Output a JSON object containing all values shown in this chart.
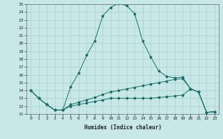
{
  "xlabel": "Humidex (Indice chaleur)",
  "xlim": [
    -0.5,
    23.5
  ],
  "ylim": [
    11,
    25
  ],
  "yticks": [
    11,
    12,
    13,
    14,
    15,
    16,
    17,
    18,
    19,
    20,
    21,
    22,
    23,
    24,
    25
  ],
  "xticks": [
    0,
    1,
    2,
    3,
    4,
    5,
    6,
    7,
    8,
    9,
    10,
    11,
    12,
    13,
    14,
    15,
    16,
    17,
    18,
    19,
    20,
    21,
    22,
    23
  ],
  "bg_color": "#c8e8e8",
  "line_color": "#1a6e6a",
  "grid_color": "#a8cccc",
  "curve1_x": [
    0,
    1,
    2,
    3,
    4,
    5,
    6,
    7,
    8,
    9,
    10,
    11,
    12,
    13,
    14,
    15,
    16,
    17,
    18,
    19,
    20,
    21,
    22,
    23
  ],
  "curve1_y": [
    14,
    13,
    12.2,
    11.5,
    11.5,
    14.5,
    16.2,
    18.5,
    20.3,
    23.5,
    24.6,
    25.1,
    24.8,
    23.8,
    20.3,
    18.3,
    16.5,
    15.8,
    15.6,
    15.7,
    14.2,
    13.8,
    11.2,
    11.3
  ],
  "curve2_x": [
    0,
    1,
    2,
    3,
    4,
    5,
    6,
    7,
    8,
    9,
    10,
    11,
    12,
    13,
    14,
    15,
    16,
    17,
    18,
    19,
    20,
    21,
    22,
    23
  ],
  "curve2_y": [
    14,
    13,
    12.2,
    11.5,
    11.5,
    12.2,
    12.5,
    12.8,
    13.1,
    13.5,
    13.8,
    14.0,
    14.2,
    14.4,
    14.6,
    14.8,
    15.0,
    15.2,
    15.4,
    15.5,
    14.2,
    13.8,
    11.2,
    11.3
  ],
  "curve3_x": [
    0,
    1,
    2,
    3,
    4,
    5,
    6,
    7,
    8,
    9,
    10,
    11,
    12,
    13,
    14,
    15,
    16,
    17,
    18,
    19,
    20,
    21,
    22,
    23
  ],
  "curve3_y": [
    14,
    13,
    12.2,
    11.5,
    11.5,
    12.0,
    12.2,
    12.4,
    12.6,
    12.8,
    13.0,
    13.0,
    13.0,
    13.0,
    13.0,
    13.0,
    13.1,
    13.2,
    13.3,
    13.4,
    14.2,
    13.8,
    11.2,
    11.3
  ]
}
